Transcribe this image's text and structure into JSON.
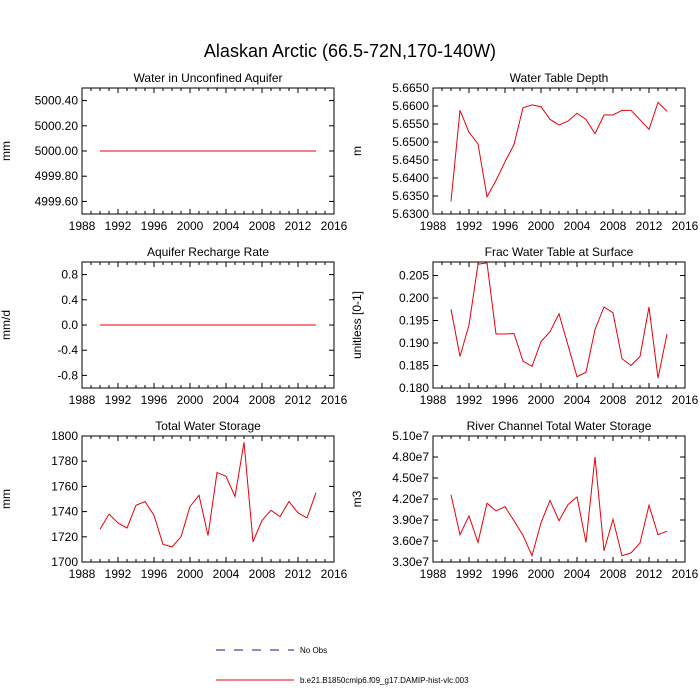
{
  "figure": {
    "title": "Alaskan Arctic (66.5-72N,170-140W)"
  },
  "legend": {
    "items": [
      {
        "label": "No Obs",
        "color": "#1a1a80",
        "dash": true
      },
      {
        "label": "b.e21.B1850cmip6.f09_g17.DAMIP-hist-vlc.003",
        "color": "#e8000b",
        "dash": false
      }
    ]
  },
  "chart_data": [
    {
      "type": "line",
      "title": "Water in Unconfined Aquifer",
      "ylabel": "mm",
      "xlim": [
        1988,
        2016
      ],
      "xticks": [
        1988,
        1992,
        1996,
        2000,
        2004,
        2008,
        2012,
        2016
      ],
      "ylim": [
        4999.5,
        5000.5
      ],
      "yticks": [
        4999.6,
        4999.8,
        5000.0,
        5000.2,
        5000.4
      ],
      "ytick_labels": [
        "4999.60",
        "4999.80",
        "5000.00",
        "5000.20",
        "5000.40"
      ],
      "series": [
        {
          "color": "#e8000b",
          "x": [
            1990,
            1991,
            1992,
            1993,
            1994,
            1995,
            1996,
            1997,
            1998,
            1999,
            2000,
            2001,
            2002,
            2003,
            2004,
            2005,
            2006,
            2007,
            2008,
            2009,
            2010,
            2011,
            2012,
            2013,
            2014
          ],
          "values": [
            5000,
            5000,
            5000,
            5000,
            5000,
            5000,
            5000,
            5000,
            5000,
            5000,
            5000,
            5000,
            5000,
            5000,
            5000,
            5000,
            5000,
            5000,
            5000,
            5000,
            5000,
            5000,
            5000,
            5000,
            5000
          ]
        }
      ]
    },
    {
      "type": "line",
      "title": "Water Table Depth",
      "ylabel": "m",
      "xlim": [
        1988,
        2016
      ],
      "xticks": [
        1988,
        1992,
        1996,
        2000,
        2004,
        2008,
        2012,
        2016
      ],
      "ylim": [
        5.63,
        5.665
      ],
      "yticks": [
        5.63,
        5.635,
        5.64,
        5.645,
        5.65,
        5.655,
        5.66,
        5.665
      ],
      "ytick_labels": [
        "5.6300",
        "5.6350",
        "5.6400",
        "5.6450",
        "5.6500",
        "5.6550",
        "5.6600",
        "5.6650"
      ],
      "series": [
        {
          "color": "#e8000b",
          "x": [
            1990,
            1991,
            1992,
            1993,
            1994,
            1995,
            1996,
            1997,
            1998,
            1999,
            2000,
            2001,
            2002,
            2003,
            2004,
            2005,
            2006,
            2007,
            2008,
            2009,
            2010,
            2011,
            2012,
            2013,
            2014
          ],
          "values": [
            5.6335,
            5.6588,
            5.6527,
            5.6495,
            5.6348,
            5.6393,
            5.6445,
            5.6493,
            5.6595,
            5.6603,
            5.6598,
            5.6563,
            5.6547,
            5.6558,
            5.658,
            5.6563,
            5.6523,
            5.6575,
            5.6575,
            5.6588,
            5.6588,
            5.6562,
            5.6535,
            5.661,
            5.6585
          ]
        }
      ]
    },
    {
      "type": "line",
      "title": "Aquifer Recharge Rate",
      "ylabel": "mm/d",
      "xlim": [
        1988,
        2016
      ],
      "xticks": [
        1988,
        1992,
        1996,
        2000,
        2004,
        2008,
        2012,
        2016
      ],
      "ylim": [
        -1.0,
        1.0
      ],
      "yticks": [
        -0.8,
        -0.4,
        0.0,
        0.4,
        0.8
      ],
      "ytick_labels": [
        "-0.8",
        "-0.4",
        "0.0",
        "0.4",
        "0.8"
      ],
      "series": [
        {
          "color": "#e8000b",
          "x": [
            1990,
            1991,
            1992,
            1993,
            1994,
            1995,
            1996,
            1997,
            1998,
            1999,
            2000,
            2001,
            2002,
            2003,
            2004,
            2005,
            2006,
            2007,
            2008,
            2009,
            2010,
            2011,
            2012,
            2013,
            2014
          ],
          "values": [
            0,
            0,
            0,
            0,
            0,
            0,
            0,
            0,
            0,
            0,
            0,
            0,
            0,
            0,
            0,
            0,
            0,
            0,
            0,
            0,
            0,
            0,
            0,
            0,
            0
          ]
        }
      ]
    },
    {
      "type": "line",
      "title": "Frac Water Table at Surface",
      "ylabel": "unitless [0-1]",
      "xlim": [
        1988,
        2016
      ],
      "xticks": [
        1988,
        1992,
        1996,
        2000,
        2004,
        2008,
        2012,
        2016
      ],
      "ylim": [
        0.18,
        0.208
      ],
      "yticks": [
        0.18,
        0.185,
        0.19,
        0.195,
        0.2,
        0.205
      ],
      "ytick_labels": [
        "0.180",
        "0.185",
        "0.190",
        "0.195",
        "0.200",
        "0.205"
      ],
      "series": [
        {
          "color": "#e8000b",
          "x": [
            1990,
            1991,
            1992,
            1993,
            1994,
            1995,
            1996,
            1997,
            1998,
            1999,
            2000,
            2001,
            2002,
            2003,
            2004,
            2005,
            2006,
            2007,
            2008,
            2009,
            2010,
            2011,
            2012,
            2013,
            2014
          ],
          "values": [
            0.1975,
            0.187,
            0.194,
            0.2075,
            0.2078,
            0.192,
            0.192,
            0.1921,
            0.186,
            0.1848,
            0.1903,
            0.1925,
            0.1965,
            0.1895,
            0.1825,
            0.1835,
            0.193,
            0.198,
            0.1967,
            0.1865,
            0.185,
            0.187,
            0.198,
            0.1822,
            0.192
          ]
        }
      ]
    },
    {
      "type": "line",
      "title": "Total Water Storage",
      "ylabel": "mm",
      "xlim": [
        1988,
        2016
      ],
      "xticks": [
        1988,
        1992,
        1996,
        2000,
        2004,
        2008,
        2012,
        2016
      ],
      "ylim": [
        1700,
        1800
      ],
      "yticks": [
        1700,
        1720,
        1740,
        1760,
        1780,
        1800
      ],
      "ytick_labels": [
        "1700",
        "1720",
        "1740",
        "1760",
        "1780",
        "1800"
      ],
      "series": [
        {
          "color": "#e8000b",
          "x": [
            1990,
            1991,
            1992,
            1993,
            1994,
            1995,
            1996,
            1997,
            1998,
            1999,
            2000,
            2001,
            2002,
            2003,
            2004,
            2005,
            2006,
            2007,
            2008,
            2009,
            2010,
            2011,
            2012,
            2013,
            2014
          ],
          "values": [
            1726,
            1738,
            1731,
            1727,
            1745,
            1748,
            1737,
            1714,
            1712,
            1720,
            1744,
            1753,
            1721,
            1771,
            1768,
            1752,
            1795,
            1716,
            1733,
            1741,
            1736,
            1748,
            1739,
            1735,
            1755
          ]
        }
      ]
    },
    {
      "type": "line",
      "title": "River Channel Total Water Storage",
      "ylabel": "m3",
      "xlim": [
        1988,
        2016
      ],
      "xticks": [
        1988,
        1992,
        1996,
        2000,
        2004,
        2008,
        2012,
        2016
      ],
      "ylim": [
        33000000,
        51000000
      ],
      "yticks": [
        33000000,
        36000000,
        39000000,
        42000000,
        45000000,
        48000000,
        51000000
      ],
      "ytick_labels": [
        "3.30e7",
        "3.60e7",
        "3.90e7",
        "4.20e7",
        "4.50e7",
        "4.80e7",
        "5.10e7"
      ],
      "series": [
        {
          "color": "#e8000b",
          "x": [
            1990,
            1991,
            1992,
            1993,
            1994,
            1995,
            1996,
            1997,
            1998,
            1999,
            2000,
            2001,
            2002,
            2003,
            2004,
            2005,
            2006,
            2007,
            2008,
            2009,
            2010,
            2011,
            2012,
            2013,
            2014
          ],
          "values": [
            42600000,
            36900000,
            39600000,
            35800000,
            41400000,
            40300000,
            40900000,
            38900000,
            36800000,
            33900000,
            38600000,
            41800000,
            38900000,
            41200000,
            42300000,
            35800000,
            48000000,
            34600000,
            39100000,
            33900000,
            34300000,
            35700000,
            41100000,
            36900000,
            37400000
          ]
        }
      ]
    }
  ]
}
